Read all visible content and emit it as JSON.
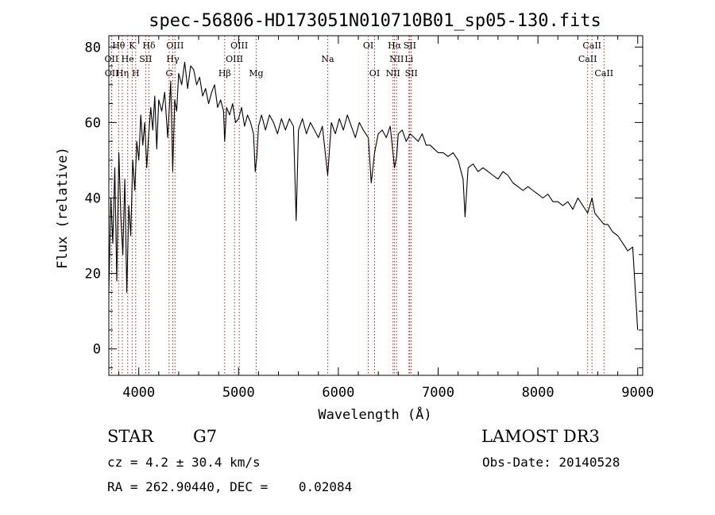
{
  "chart_data": {
    "type": "line",
    "title": "spec-56806-HD173051N010710B01_sp05-130.fits",
    "xlabel": "Wavelength (Å)",
    "ylabel": "Flux (relative)",
    "xlim": [
      3700,
      9050
    ],
    "ylim": [
      -7,
      83
    ],
    "x_ticks": [
      4000,
      5000,
      6000,
      7000,
      8000,
      9000
    ],
    "x_tick_labels": [
      "4000",
      "5000",
      "6000",
      "7000",
      "8000",
      "9000"
    ],
    "y_ticks": [
      0,
      20,
      40,
      60,
      80
    ],
    "y_tick_labels": [
      "0",
      "20",
      "40",
      "60",
      "80"
    ],
    "grid": false,
    "series": [
      {
        "name": "flux",
        "x": [
          3700,
          3720,
          3740,
          3760,
          3780,
          3800,
          3820,
          3840,
          3860,
          3880,
          3900,
          3920,
          3940,
          3960,
          3980,
          4000,
          4020,
          4040,
          4060,
          4080,
          4100,
          4120,
          4140,
          4160,
          4180,
          4200,
          4230,
          4260,
          4290,
          4320,
          4340,
          4360,
          4380,
          4400,
          4430,
          4460,
          4490,
          4520,
          4550,
          4580,
          4610,
          4640,
          4670,
          4700,
          4730,
          4760,
          4790,
          4820,
          4850,
          4861,
          4880,
          4910,
          4940,
          4970,
          5000,
          5030,
          5060,
          5090,
          5120,
          5150,
          5167,
          5183,
          5200,
          5230,
          5270,
          5310,
          5350,
          5390,
          5430,
          5470,
          5510,
          5550,
          5577,
          5600,
          5640,
          5680,
          5720,
          5760,
          5800,
          5840,
          5893,
          5930,
          5970,
          6010,
          6050,
          6090,
          6130,
          6170,
          6210,
          6250,
          6300,
          6330,
          6363,
          6400,
          6440,
          6480,
          6520,
          6563,
          6584,
          6600,
          6640,
          6680,
          6720,
          6760,
          6800,
          6840,
          6880,
          6920,
          6960,
          7000,
          7050,
          7100,
          7150,
          7200,
          7250,
          7270,
          7300,
          7350,
          7400,
          7450,
          7500,
          7550,
          7600,
          7650,
          7700,
          7750,
          7800,
          7850,
          7900,
          7950,
          8000,
          8050,
          8100,
          8150,
          8200,
          8250,
          8300,
          8350,
          8400,
          8450,
          8498,
          8542,
          8570,
          8600,
          8662,
          8700,
          8750,
          8800,
          8850,
          8900,
          8950,
          9000
        ],
        "values": [
          15,
          40,
          28,
          48,
          18,
          52,
          35,
          25,
          45,
          15,
          38,
          30,
          50,
          42,
          55,
          50,
          62,
          54,
          60,
          48,
          57,
          64,
          58,
          67,
          53,
          66,
          63,
          68,
          56,
          71,
          47,
          66,
          63,
          73,
          70,
          76,
          69,
          75,
          74,
          70,
          72,
          67,
          69,
          65,
          68,
          70,
          64,
          66,
          63,
          55,
          64,
          62,
          65,
          60,
          61,
          64,
          59,
          62,
          60,
          57,
          47,
          51,
          59,
          62,
          58,
          62,
          60,
          57,
          61,
          58,
          61,
          59,
          34,
          58,
          61,
          57,
          60,
          58,
          56,
          59,
          46,
          60,
          57,
          61,
          58,
          62,
          59,
          56,
          60,
          58,
          56,
          44,
          52,
          57,
          58,
          56,
          59,
          48,
          51,
          57,
          58,
          55,
          57,
          56,
          55,
          57,
          54,
          54,
          53,
          52,
          52,
          51,
          52,
          50,
          45,
          35,
          48,
          49,
          47,
          48,
          47,
          46,
          45,
          47,
          46,
          44,
          43,
          42,
          43,
          42,
          41,
          40,
          41,
          39,
          39,
          38,
          39,
          37,
          40,
          38,
          36,
          40,
          36,
          35,
          33,
          33,
          31,
          30,
          28,
          26,
          27,
          5
        ]
      }
    ],
    "line_labels": [
      {
        "label": "Hθ",
        "wavelength": 3798,
        "row": 1
      },
      {
        "label": "OII",
        "wavelength": 3727,
        "row": 2
      },
      {
        "label": "OII",
        "wavelength": 3729,
        "row": 3
      },
      {
        "label": "Hη",
        "wavelength": 3835,
        "row": 3
      },
      {
        "label": "He",
        "wavelength": 3889,
        "row": 2
      },
      {
        "label": "K",
        "wavelength": 3934,
        "row": 1
      },
      {
        "label": "H",
        "wavelength": 3969,
        "row": 3
      },
      {
        "label": "SII",
        "wavelength": 4069,
        "row": 2
      },
      {
        "label": "Hδ",
        "wavelength": 4102,
        "row": 1
      },
      {
        "label": "OIII",
        "wavelength": 4363,
        "row": 1
      },
      {
        "label": "Hγ",
        "wavelength": 4341,
        "row": 2
      },
      {
        "label": "G",
        "wavelength": 4304,
        "row": 3
      },
      {
        "label": "Hβ",
        "wavelength": 4861,
        "row": 3
      },
      {
        "label": "OIII",
        "wavelength": 5007,
        "row": 1
      },
      {
        "label": "OIII",
        "wavelength": 4959,
        "row": 2
      },
      {
        "label": "Mg",
        "wavelength": 5176,
        "row": 3
      },
      {
        "label": "Na",
        "wavelength": 5893,
        "row": 2
      },
      {
        "label": "OI",
        "wavelength": 6300,
        "row": 1
      },
      {
        "label": "OI",
        "wavelength": 6363,
        "row": 3
      },
      {
        "label": "Hα",
        "wavelength": 6563,
        "row": 1
      },
      {
        "label": "SII",
        "wavelength": 6716,
        "row": 1
      },
      {
        "label": "NII",
        "wavelength": 6584,
        "row": 2
      },
      {
        "label": "Li",
        "wavelength": 6708,
        "row": 2
      },
      {
        "label": "NII",
        "wavelength": 6548,
        "row": 3
      },
      {
        "label": "SII",
        "wavelength": 6731,
        "row": 3
      },
      {
        "label": "CaII",
        "wavelength": 8542,
        "row": 1
      },
      {
        "label": "CaII",
        "wavelength": 8498,
        "row": 2
      },
      {
        "label": "CaII",
        "wavelength": 8662,
        "row": 3
      }
    ],
    "marker_lines": [
      3727,
      3729,
      3798,
      3835,
      3889,
      3934,
      3969,
      4069,
      4102,
      4304,
      4341,
      4363,
      4861,
      4959,
      5007,
      5176,
      5893,
      6300,
      6363,
      6548,
      6563,
      6584,
      6708,
      6716,
      6731,
      8498,
      8542,
      8662
    ]
  },
  "info": {
    "object_class": "STAR",
    "subclass": "G7",
    "survey": "LAMOST DR3",
    "redshift_text": "cz = 4.2 ± 30.4 km/s",
    "obs_date_text": "Obs-Date: 20140528",
    "coords_text": "RA = 262.90440, DEC =    0.02084"
  },
  "colors": {
    "spectrum": "#000000",
    "marker_line": "#b22222",
    "axes": "#000000",
    "background": "#ffffff"
  }
}
